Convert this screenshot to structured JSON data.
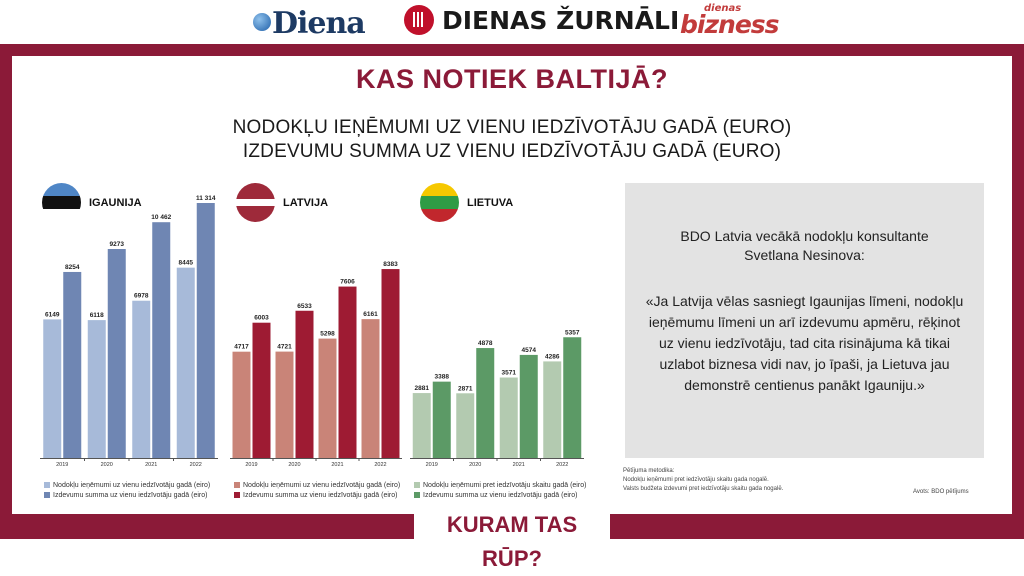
{
  "header": {
    "brand_diena": "Diena",
    "brand_zurnali": "DIENAS ŽURNĀLI",
    "brand_biz_small": "dienas",
    "brand_biz_big": "bizness"
  },
  "title": "KAS NOTIEK BALTIJĀ?",
  "subtitle_1": "NODOKĻU IEŅĒMUMI UZ VIENU IEDZĪVOTĀJU GADĀ (EURO)",
  "subtitle_2": "IZDEVUMU SUMMA UZ VIENU IEDZĪVOTĀJU GADĀ (EURO)",
  "quote": {
    "intro_line_1": "BDO Latvia vecākā nodokļu konsultante",
    "intro_line_2": "Svetlana Nesinova:",
    "text": "«Ja Latvija vēlas sasniegt Igaunijas līmeni, nodokļu ieņēmumu līmeni un arī izdevumu apmēru, rēķinot uz vienu iedzīvotāju, tad cita risinājuma kā tikai uzlabot biznesa vidi nav, jo īpaši, ja Lietuva jau demonstrē centienus panākt Igauniju.»"
  },
  "notes": {
    "title": "Pētījuma metodika:",
    "line_1": "Nodokļu ieņēmumi pret iedzīvotāju skaitu gada nogalē.",
    "line_2": "Valsts budžeta izdevumi pret iedzīvotāju skaitu gada nogalē.",
    "source": "Avots: BDO pētījums"
  },
  "bottom_banner": "KURAM TAS RŪP?",
  "chart_data": [
    {
      "type": "bar",
      "country": "IGAUNIJA",
      "flag_colors": [
        "#4f86c6",
        "#111111",
        "#ffffff"
      ],
      "categories": [
        "2019",
        "2020",
        "2021",
        "2022"
      ],
      "series": [
        {
          "name": "Nodokļu ieņēmumi uz vienu iedzīvotāju gadā (eiro)",
          "color": "#a7bad9",
          "values": [
            6149,
            6118,
            6978,
            8445
          ],
          "labels": [
            "6149",
            "6118",
            "6978",
            "8445"
          ]
        },
        {
          "name": "Izdevumu summa uz vienu iedzīvotāju gadā (eiro)",
          "color": "#6f86b3",
          "values": [
            8254,
            9273,
            10462,
            11314
          ],
          "labels": [
            "8254",
            "9273",
            "10 462",
            "11 314"
          ]
        }
      ]
    },
    {
      "type": "bar",
      "country": "LATVIJA",
      "flag_colors": [
        "#9e2a3a",
        "#ffffff",
        "#9e2a3a"
      ],
      "categories": [
        "2019",
        "2020",
        "2021",
        "2022"
      ],
      "series": [
        {
          "name": "Nodokļu ieņēmumi uz vienu iedzīvotāju gadā (eiro)",
          "color": "#c98478",
          "values": [
            4717,
            4721,
            5298,
            6161
          ],
          "labels": [
            "4717",
            "4721",
            "5298",
            "6161"
          ]
        },
        {
          "name": "Izdevumu summa uz vienu iedzīvotāju gadā (eiro)",
          "color": "#9e1b33",
          "values": [
            6003,
            6533,
            7606,
            8383
          ],
          "labels": [
            "6003",
            "6533",
            "7606",
            "8383"
          ]
        }
      ]
    },
    {
      "type": "bar",
      "country": "LIETUVA",
      "flag_colors": [
        "#f6c800",
        "#2f9c45",
        "#c1272d"
      ],
      "categories": [
        "2019",
        "2020",
        "2021",
        "2022"
      ],
      "series": [
        {
          "name": "Nodokļu ieņēmumi pret iedzīvotāju skaitu gadā (eiro)",
          "color": "#b3cab0",
          "values": [
            2881,
            2871,
            3571,
            4286
          ],
          "labels": [
            "2881",
            "2871",
            "3571",
            "4286"
          ]
        },
        {
          "name": "Izdevumu summa uz vienu iedzīvotāju gadā (eiro)",
          "color": "#5c9a66",
          "values": [
            3388,
            4878,
            4574,
            5357
          ],
          "labels": [
            "3388",
            "4878",
            "4574",
            "5357"
          ]
        }
      ]
    }
  ]
}
